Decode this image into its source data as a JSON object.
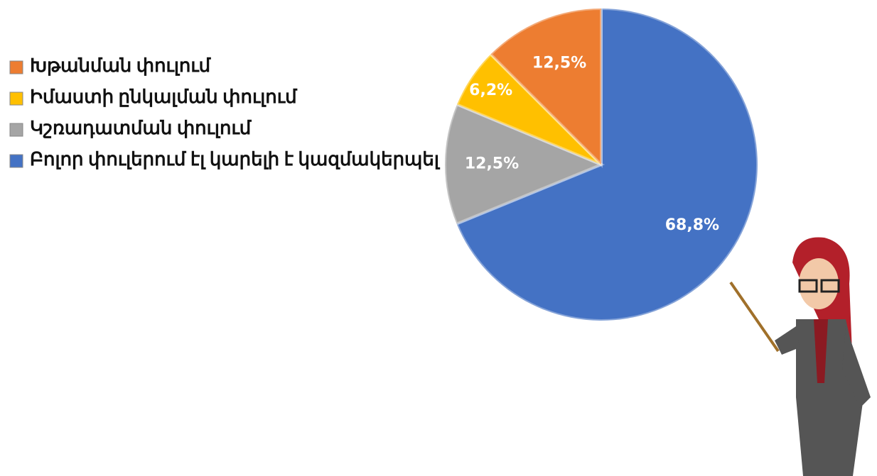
{
  "chart_data": {
    "type": "pie",
    "categories": [
      "Խթանման փուլում",
      "Իմաստի ընկալման փուլում",
      "Կշռադատման փուլում",
      "Բոլոր փուլերում էլ կարելի է կազմակերպել"
    ],
    "values": [
      12.5,
      6.2,
      12.5,
      68.8
    ],
    "value_labels": [
      "12,5%",
      "6,2%",
      "12,5%",
      "68,8%"
    ],
    "colors": [
      "#ed7d31",
      "#ffc000",
      "#a5a5a5",
      "#4472c4"
    ],
    "legend": "left"
  }
}
